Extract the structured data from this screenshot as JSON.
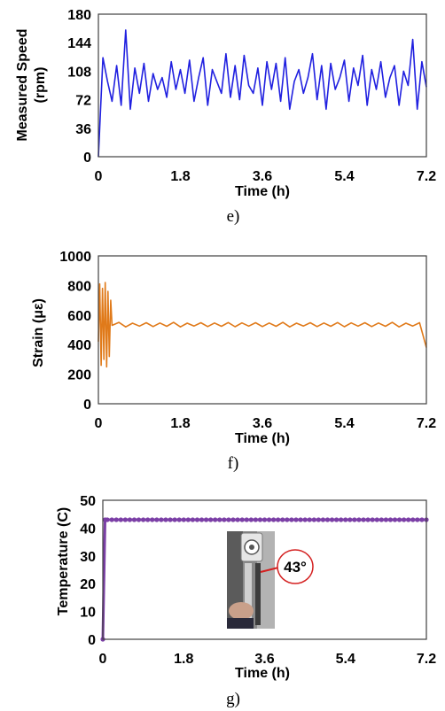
{
  "chart_data": [
    {
      "type": "line",
      "panel": "e",
      "caption": "e)",
      "xlabel": "Time (h)",
      "ylabel": "Measured Speed (rpm)",
      "ylabel_lines": [
        "Measured Speed",
        "(rpm)"
      ],
      "xlim": [
        0,
        7.2
      ],
      "ylim": [
        0,
        180
      ],
      "xticks": [
        "0",
        "1.8",
        "3.6",
        "5.4",
        "7.2"
      ],
      "yticks": [
        "0",
        "36",
        "72",
        "108",
        "144",
        "180"
      ],
      "grid": false,
      "series": [
        {
          "color": "#2020e0",
          "x": [
            0,
            0.1,
            0.2,
            0.3,
            0.4,
            0.5,
            0.6,
            0.7,
            0.8,
            0.9,
            1.0,
            1.1,
            1.2,
            1.3,
            1.4,
            1.5,
            1.6,
            1.7,
            1.8,
            1.9,
            2.0,
            2.1,
            2.2,
            2.3,
            2.4,
            2.5,
            2.6,
            2.7,
            2.8,
            2.9,
            3.0,
            3.1,
            3.2,
            3.3,
            3.4,
            3.5,
            3.6,
            3.7,
            3.8,
            3.9,
            4.0,
            4.1,
            4.2,
            4.3,
            4.4,
            4.5,
            4.6,
            4.7,
            4.8,
            4.9,
            5.0,
            5.1,
            5.2,
            5.3,
            5.4,
            5.5,
            5.6,
            5.7,
            5.8,
            5.9,
            6.0,
            6.1,
            6.2,
            6.3,
            6.4,
            6.5,
            6.6,
            6.7,
            6.8,
            6.9,
            7.0,
            7.1,
            7.2
          ],
          "y": [
            0,
            125,
            95,
            70,
            115,
            65,
            160,
            60,
            112,
            80,
            118,
            70,
            105,
            85,
            100,
            75,
            120,
            85,
            110,
            80,
            122,
            70,
            100,
            125,
            65,
            110,
            95,
            80,
            130,
            75,
            115,
            72,
            128,
            90,
            80,
            112,
            65,
            120,
            85,
            118,
            70,
            125,
            60,
            95,
            110,
            80,
            100,
            130,
            72,
            115,
            60,
            118,
            85,
            100,
            122,
            70,
            112,
            90,
            128,
            65,
            110,
            85,
            120,
            75,
            100,
            115,
            65,
            108,
            90,
            148,
            60,
            120,
            88
          ]
        }
      ]
    },
    {
      "type": "line",
      "panel": "f",
      "caption": "f)",
      "xlabel": "Time (h)",
      "ylabel": "Strain (με)",
      "xlim": [
        0,
        7.2
      ],
      "ylim": [
        0,
        1000
      ],
      "xticks": [
        "0",
        "1.8",
        "3.6",
        "5.4",
        "7.2"
      ],
      "yticks": [
        "0",
        "200",
        "400",
        "600",
        "800",
        "1000"
      ],
      "grid": false,
      "series": [
        {
          "color": "#e07a1a",
          "x": [
            0.0,
            0.03,
            0.06,
            0.09,
            0.12,
            0.15,
            0.18,
            0.21,
            0.24,
            0.27,
            0.3,
            0.45,
            0.6,
            0.75,
            0.9,
            1.05,
            1.2,
            1.35,
            1.5,
            1.65,
            1.8,
            1.95,
            2.1,
            2.25,
            2.4,
            2.55,
            2.7,
            2.85,
            3.0,
            3.15,
            3.3,
            3.45,
            3.6,
            3.75,
            3.9,
            4.05,
            4.2,
            4.35,
            4.5,
            4.65,
            4.8,
            4.95,
            5.1,
            5.25,
            5.4,
            5.55,
            5.7,
            5.85,
            6.0,
            6.15,
            6.3,
            6.45,
            6.6,
            6.75,
            6.9,
            7.05,
            7.2
          ],
          "y": [
            420,
            810,
            260,
            780,
            300,
            820,
            250,
            760,
            320,
            700,
            530,
            550,
            520,
            545,
            525,
            548,
            522,
            546,
            524,
            550,
            520,
            545,
            526,
            548,
            522,
            546,
            524,
            549,
            521,
            547,
            525,
            548,
            522,
            546,
            524,
            550,
            520,
            545,
            526,
            548,
            522,
            546,
            524,
            549,
            521,
            547,
            525,
            548,
            522,
            546,
            524,
            550,
            520,
            545,
            526,
            548,
            380
          ]
        }
      ]
    },
    {
      "type": "scatter",
      "panel": "g",
      "caption": "g)",
      "xlabel": "Time (h)",
      "ylabel": "Temperature (C)",
      "xlim": [
        0,
        7.2
      ],
      "ylim": [
        0,
        50
      ],
      "xticks": [
        "0",
        "1.8",
        "3.6",
        "5.4",
        "7.2"
      ],
      "yticks": [
        "0",
        "10",
        "20",
        "30",
        "40",
        "50"
      ],
      "grid": false,
      "annotation": "43°",
      "series": [
        {
          "color": "#7b3fa6",
          "x": [
            0,
            0.05,
            0.1,
            0.2,
            0.3,
            0.4,
            0.5,
            0.6,
            0.7,
            0.8,
            0.9,
            1.0,
            1.1,
            1.2,
            1.3,
            1.4,
            1.5,
            1.6,
            1.7,
            1.8,
            1.9,
            2.0,
            2.1,
            2.2,
            2.3,
            2.4,
            2.5,
            2.6,
            2.7,
            2.8,
            2.9,
            3.0,
            3.1,
            3.2,
            3.3,
            3.4,
            3.5,
            3.6,
            3.7,
            3.8,
            3.9,
            4.0,
            4.1,
            4.2,
            4.3,
            4.4,
            4.5,
            4.6,
            4.7,
            4.8,
            4.9,
            5.0,
            5.1,
            5.2,
            5.3,
            5.4,
            5.5,
            5.6,
            5.7,
            5.8,
            5.9,
            6.0,
            6.1,
            6.2,
            6.3,
            6.4,
            6.5,
            6.6,
            6.7,
            6.8,
            6.9,
            7.0,
            7.1,
            7.2
          ],
          "y": [
            0,
            43,
            43,
            43,
            43,
            43,
            43,
            43,
            43,
            43,
            43,
            43,
            43,
            43,
            43,
            43,
            43,
            43,
            43,
            43,
            43,
            43,
            43,
            43,
            43,
            43,
            43,
            43,
            43,
            43,
            43,
            43,
            43,
            43,
            43,
            43,
            43,
            43,
            43,
            43,
            43,
            43,
            43,
            43,
            43,
            43,
            43,
            43,
            43,
            43,
            43,
            43,
            43,
            43,
            43,
            43,
            43,
            43,
            43,
            43,
            43,
            43,
            43,
            43,
            43,
            43,
            43,
            43,
            43,
            43,
            43,
            43,
            43,
            43
          ]
        }
      ]
    }
  ]
}
